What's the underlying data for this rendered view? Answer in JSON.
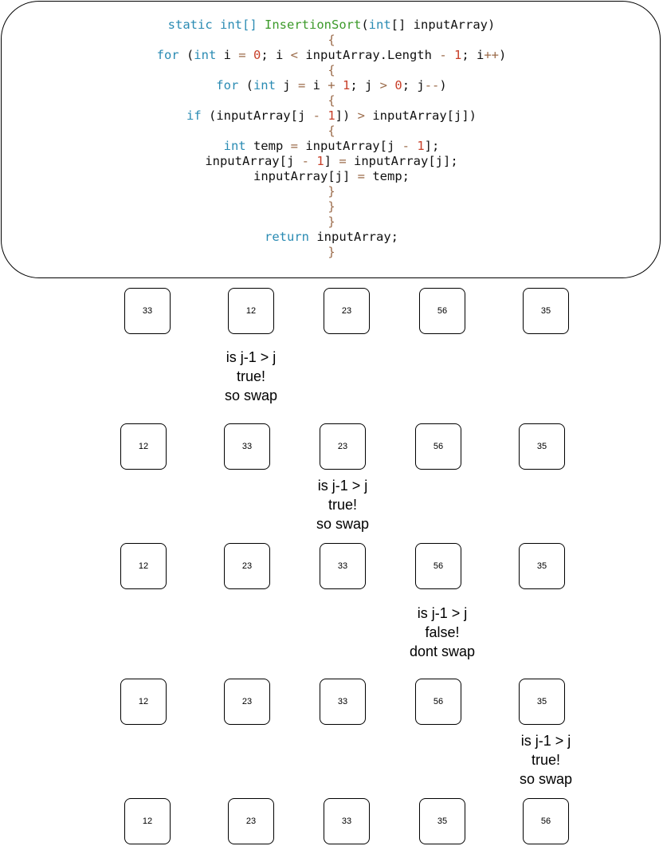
{
  "code": {
    "lines": [
      [
        [
          "static int[] ",
          "kw"
        ],
        [
          "InsertionSort",
          "fn"
        ],
        [
          "(",
          "pl"
        ],
        [
          "int",
          "kw"
        ],
        [
          "[] inputArray)",
          "pl"
        ]
      ],
      [
        [
          "{",
          "op"
        ]
      ],
      [
        [
          "for ",
          "kw"
        ],
        [
          "(",
          "pl"
        ],
        [
          "int",
          "kw"
        ],
        [
          " i ",
          "pl"
        ],
        [
          "=",
          "op"
        ],
        [
          " ",
          "pl"
        ],
        [
          "0",
          "num"
        ],
        [
          "; i ",
          "pl"
        ],
        [
          "<",
          "op"
        ],
        [
          " inputArray.Length ",
          "pl"
        ],
        [
          "-",
          "op"
        ],
        [
          " ",
          "pl"
        ],
        [
          "1",
          "num"
        ],
        [
          "; i",
          "pl"
        ],
        [
          "++",
          "op"
        ],
        [
          ")",
          "pl"
        ]
      ],
      [
        [
          "{",
          "op"
        ]
      ],
      [
        [
          "for ",
          "kw"
        ],
        [
          "(",
          "pl"
        ],
        [
          "int",
          "kw"
        ],
        [
          " j ",
          "pl"
        ],
        [
          "=",
          "op"
        ],
        [
          " i ",
          "pl"
        ],
        [
          "+",
          "op"
        ],
        [
          " ",
          "pl"
        ],
        [
          "1",
          "num"
        ],
        [
          "; j ",
          "pl"
        ],
        [
          ">",
          "op"
        ],
        [
          " ",
          "pl"
        ],
        [
          "0",
          "num"
        ],
        [
          "; j",
          "pl"
        ],
        [
          "--",
          "op"
        ],
        [
          ")",
          "pl"
        ]
      ],
      [
        [
          "{",
          "op"
        ]
      ],
      [
        [
          "if ",
          "kw"
        ],
        [
          "(inputArray[j ",
          "pl"
        ],
        [
          "-",
          "op"
        ],
        [
          " ",
          "pl"
        ],
        [
          "1",
          "num"
        ],
        [
          "]) ",
          "pl"
        ],
        [
          ">",
          "op"
        ],
        [
          " inputArray[j])",
          "pl"
        ]
      ],
      [
        [
          "{",
          "op"
        ]
      ],
      [
        [
          "int",
          "kw"
        ],
        [
          " temp ",
          "pl"
        ],
        [
          "=",
          "op"
        ],
        [
          " inputArray[j ",
          "pl"
        ],
        [
          "-",
          "op"
        ],
        [
          " ",
          "pl"
        ],
        [
          "1",
          "num"
        ],
        [
          "];",
          "pl"
        ]
      ],
      [
        [
          "inputArray[j ",
          "pl"
        ],
        [
          "-",
          "op"
        ],
        [
          " ",
          "pl"
        ],
        [
          "1",
          "num"
        ],
        [
          "] ",
          "pl"
        ],
        [
          "=",
          "op"
        ],
        [
          " inputArray[j];",
          "pl"
        ]
      ],
      [
        [
          "inputArray[j] ",
          "pl"
        ],
        [
          "=",
          "op"
        ],
        [
          " temp;",
          "pl"
        ]
      ],
      [
        [
          "}",
          "op"
        ]
      ],
      [
        [
          "}",
          "op"
        ]
      ],
      [
        [
          "}",
          "op"
        ]
      ],
      [
        [
          "return ",
          "kw"
        ],
        [
          "inputArray;",
          "pl"
        ]
      ],
      [
        [
          "}",
          "op"
        ]
      ]
    ]
  },
  "rows": [
    [
      "33",
      "12",
      "23",
      "56",
      "35"
    ],
    [
      "12",
      "33",
      "23",
      "56",
      "35"
    ],
    [
      "12",
      "23",
      "33",
      "56",
      "35"
    ],
    [
      "12",
      "23",
      "33",
      "56",
      "35"
    ],
    [
      "12",
      "23",
      "33",
      "35",
      "56"
    ]
  ],
  "notes": [
    [
      "is j-1 > j",
      "true!",
      "so swap"
    ],
    [
      "is j-1 > j",
      "true!",
      "so swap"
    ],
    [
      "is j-1 > j",
      "false!",
      "dont swap"
    ],
    [
      "is j-1 > j",
      "true!",
      "so swap"
    ]
  ]
}
